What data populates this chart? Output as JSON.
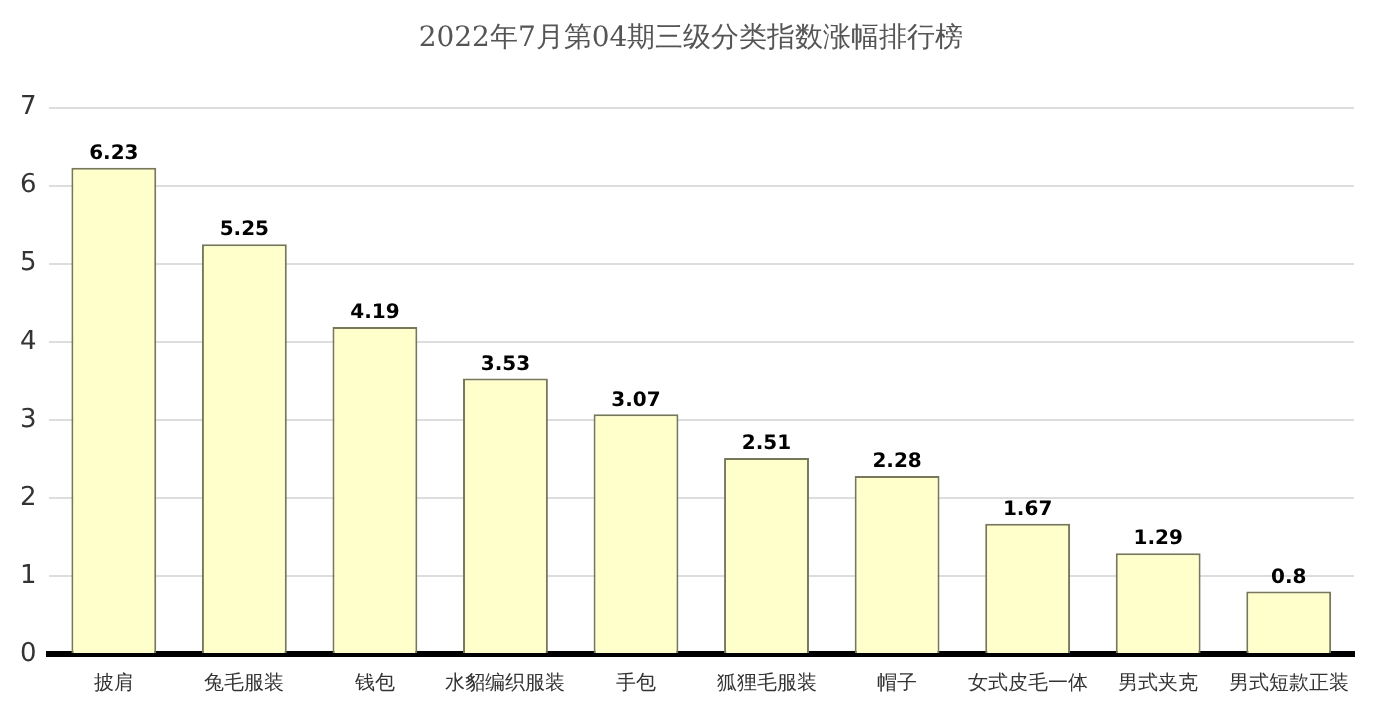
{
  "chart_data": {
    "type": "bar",
    "title": "2022年7月第04期三级分类指数涨幅排行榜",
    "categories": [
      "披肩",
      "兔毛服装",
      "钱包",
      "水貂编织服装",
      "手包",
      "狐狸毛服装",
      "帽子",
      "女式皮毛一体",
      "男式夹克",
      "男式短款正装"
    ],
    "values": [
      6.23,
      5.25,
      4.19,
      3.53,
      3.07,
      2.51,
      2.28,
      1.67,
      1.29,
      0.8
    ],
    "color": "#ffffcc",
    "ylim": [
      0,
      7
    ],
    "yticks": [
      0,
      1,
      2,
      3,
      4,
      5,
      6,
      7
    ],
    "grid": "y",
    "data_labels": true,
    "legend": false
  }
}
